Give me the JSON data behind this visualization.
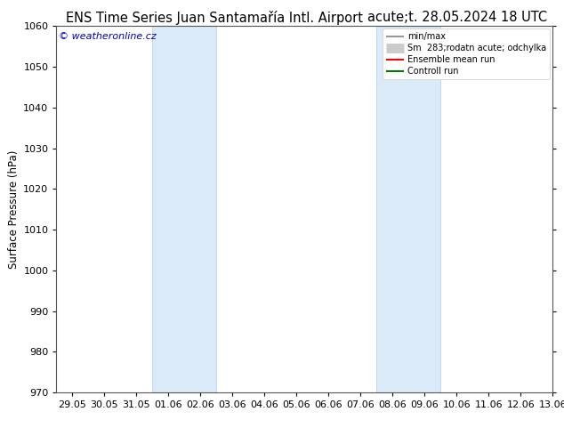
{
  "title_left": "ENS Time Series Juan Santamařía Intl. Airport",
  "title_right": "acute;t. 28.05.2024 18 UTC",
  "ylabel": "Surface Pressure (hPa)",
  "ylim": [
    970,
    1060
  ],
  "yticks": [
    970,
    980,
    990,
    1000,
    1010,
    1020,
    1030,
    1040,
    1050,
    1060
  ],
  "xlabels": [
    "29.05",
    "30.05",
    "31.05",
    "01.06",
    "02.06",
    "03.06",
    "04.06",
    "05.06",
    "06.06",
    "07.06",
    "08.06",
    "09.06",
    "10.06",
    "11.06",
    "12.06",
    "13.06"
  ],
  "shaded_bands": [
    {
      "xstart": 3,
      "xend": 5
    },
    {
      "xstart": 10,
      "xend": 12
    }
  ],
  "shade_color": "#dbeaf8",
  "shade_edge_color": "#b8d4ea",
  "background_color": "#ffffff",
  "watermark": "© weatheronline.cz",
  "watermark_color": "#0000bb",
  "legend_labels": [
    "min/max",
    "Sm  283;rodatn acute; odchylka",
    "Ensemble mean run",
    "Controll run"
  ],
  "legend_colors": [
    "#999999",
    "#cccccc",
    "#ff0000",
    "#007700"
  ],
  "legend_lws": [
    1.5,
    8,
    1.5,
    1.5
  ],
  "title_fontsize": 10.5,
  "tick_fontsize": 8,
  "ylabel_fontsize": 8.5,
  "figsize": [
    6.34,
    4.9
  ],
  "dpi": 100
}
